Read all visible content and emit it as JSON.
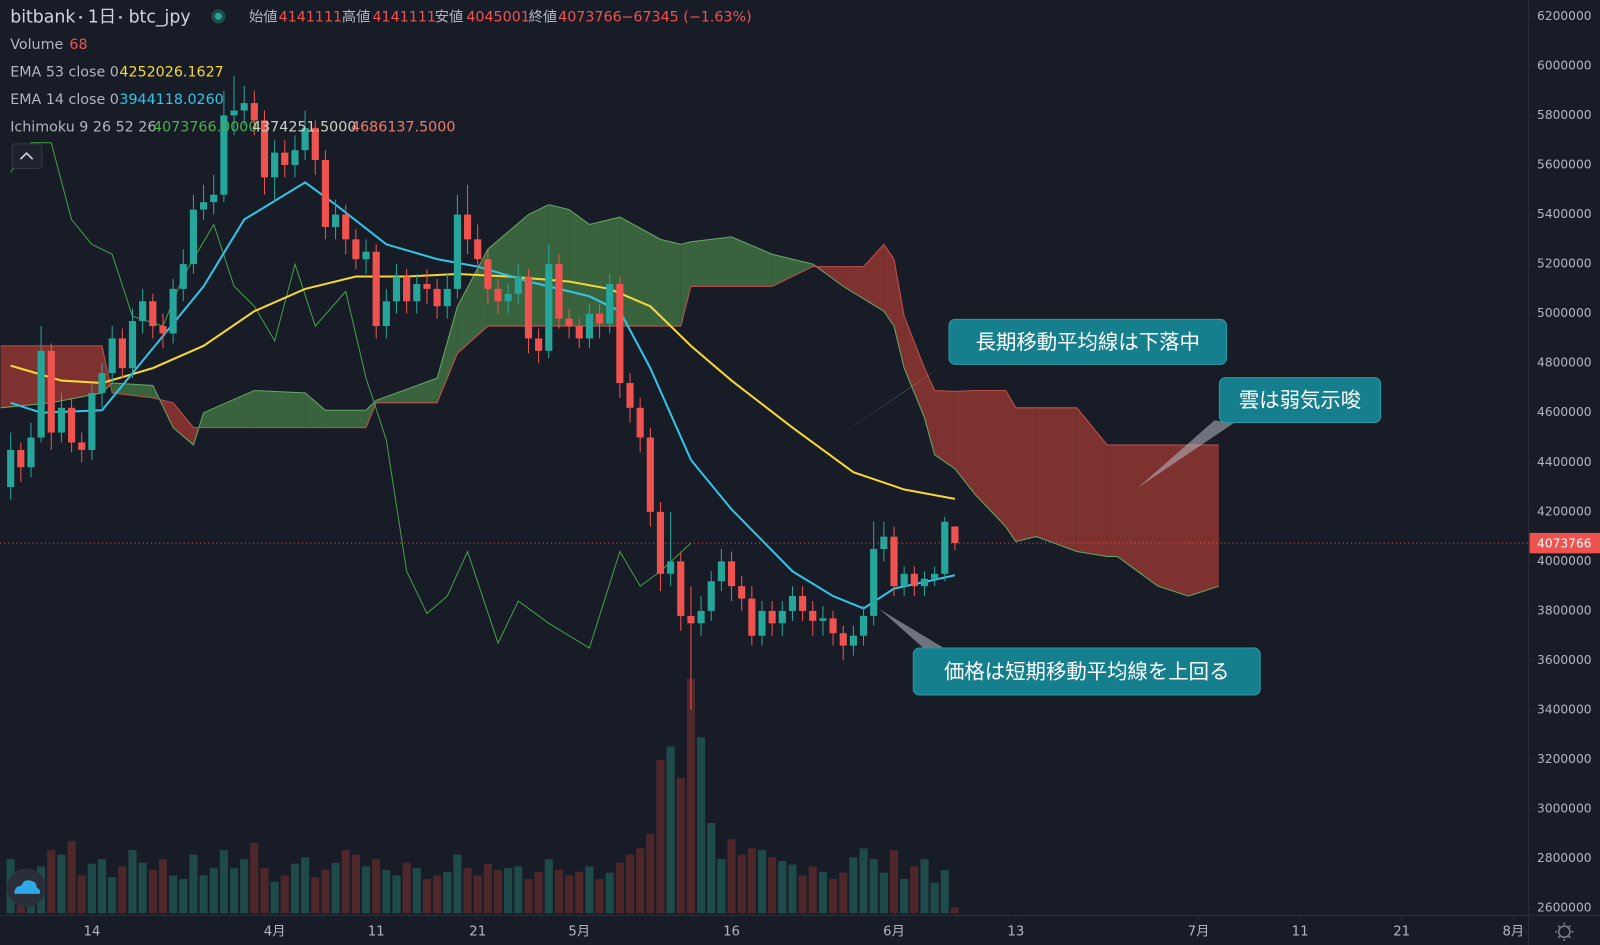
{
  "header": {
    "exchange": "bitbank",
    "interval": "1日",
    "symbol": "btc_jpy",
    "open_label": "始値",
    "high_label": "高値",
    "low_label": "安値",
    "close_label": "終値",
    "change": "−67345 (−1.63%)"
  },
  "chart_data": {
    "type": "candlestick",
    "up_color": "#26a69a",
    "down_color": "#ef5350",
    "x": [
      -8,
      -7,
      -6,
      -5,
      -4,
      -3,
      -2,
      -1,
      0,
      1,
      2,
      3,
      4,
      5,
      6,
      7,
      8,
      9,
      10,
      11,
      12,
      13,
      14,
      15,
      16,
      17,
      18,
      19,
      20,
      21,
      22,
      23,
      24,
      25,
      26,
      27,
      28,
      29,
      30,
      31,
      32,
      33,
      34,
      35,
      36,
      37,
      38,
      39,
      40,
      41,
      42,
      43,
      44,
      45,
      46,
      47,
      48,
      49,
      50,
      51,
      52,
      53,
      54,
      55,
      56,
      57,
      58,
      59,
      60,
      61,
      62,
      63,
      64,
      65,
      66,
      67,
      68,
      69,
      70,
      71,
      72,
      73,
      74,
      75,
      76,
      77,
      78,
      79,
      80,
      81,
      82,
      83,
      84,
      85
    ],
    "open": [
      4300000,
      4450000,
      4380000,
      4500000,
      4850000,
      4520000,
      4620000,
      4480000,
      4450000,
      4680000,
      4760000,
      4900000,
      4780000,
      4970000,
      5050000,
      4950000,
      4920000,
      5100000,
      5200000,
      5420000,
      5450000,
      5480000,
      5800000,
      5820000,
      5850000,
      5780000,
      5550000,
      5650000,
      5600000,
      5660000,
      5750000,
      5620000,
      5350000,
      5400000,
      5300000,
      5220000,
      5250000,
      4950000,
      5050000,
      5150000,
      5050000,
      5120000,
      5100000,
      5030000,
      5100000,
      5400000,
      5300000,
      5220000,
      5100000,
      5050000,
      5080000,
      5150000,
      4900000,
      4850000,
      5200000,
      4980000,
      4950000,
      4900000,
      5000000,
      4960000,
      5120000,
      4720000,
      4620000,
      4500000,
      4200000,
      3950000,
      4000000,
      3780000,
      3750000,
      3800000,
      3920000,
      4000000,
      3900000,
      3850000,
      3700000,
      3800000,
      3750000,
      3800000,
      3860000,
      3800000,
      3760000,
      3770000,
      3710000,
      3660000,
      3700000,
      3780000,
      4050000,
      4100000,
      3900000,
      3950000,
      3900000,
      3930000,
      3950000,
      4141111
    ],
    "high": [
      4520000,
      4480000,
      4560000,
      4950000,
      4880000,
      4680000,
      4660000,
      4520000,
      4720000,
      4800000,
      4950000,
      4940000,
      5020000,
      5100000,
      5080000,
      5000000,
      5140000,
      5260000,
      5480000,
      5520000,
      5560000,
      5900000,
      5960000,
      5920000,
      5900000,
      5820000,
      5700000,
      5700000,
      5720000,
      5820000,
      5780000,
      5660000,
      5460000,
      5440000,
      5340000,
      5300000,
      5280000,
      5100000,
      5200000,
      5180000,
      5160000,
      5180000,
      5140000,
      5160000,
      5480000,
      5520000,
      5360000,
      5260000,
      5140000,
      5120000,
      5200000,
      5180000,
      4940000,
      5280000,
      5240000,
      5020000,
      4980000,
      5040000,
      5040000,
      5160000,
      5150000,
      4760000,
      4660000,
      4540000,
      4240000,
      4200000,
      4040000,
      3900000,
      3860000,
      3960000,
      4050000,
      4040000,
      3940000,
      3900000,
      3840000,
      3840000,
      3840000,
      3900000,
      3900000,
      3840000,
      3820000,
      3800000,
      3740000,
      3740000,
      3820000,
      4160000,
      4160000,
      4140000,
      3980000,
      3980000,
      3960000,
      3980000,
      4180000,
      4141111
    ],
    "low": [
      4250000,
      4320000,
      4340000,
      4480000,
      4450000,
      4480000,
      4440000,
      4400000,
      4410000,
      4620000,
      4720000,
      4740000,
      4740000,
      4920000,
      4900000,
      4860000,
      4880000,
      5050000,
      5160000,
      5380000,
      5400000,
      5450000,
      5720000,
      5760000,
      5720000,
      5480000,
      5450000,
      5550000,
      5550000,
      5620000,
      5560000,
      5300000,
      5300000,
      5240000,
      5180000,
      5160000,
      4900000,
      4900000,
      5000000,
      5000000,
      5000000,
      5040000,
      4980000,
      4980000,
      5060000,
      5240000,
      5160000,
      5040000,
      5000000,
      5000000,
      5040000,
      4840000,
      4800000,
      4820000,
      4940000,
      4900000,
      4860000,
      4860000,
      4900000,
      4920000,
      4660000,
      4560000,
      4440000,
      4140000,
      3880000,
      3900000,
      3720000,
      3400000,
      3700000,
      3760000,
      3880000,
      3840000,
      3800000,
      3660000,
      3660000,
      3700000,
      3700000,
      3760000,
      3760000,
      3700000,
      3700000,
      3660000,
      3600000,
      3620000,
      3660000,
      3740000,
      4000000,
      3860000,
      3860000,
      3860000,
      3860000,
      3900000,
      3920000,
      4045001
    ],
    "close": [
      4450000,
      4380000,
      4500000,
      4850000,
      4520000,
      4620000,
      4480000,
      4450000,
      4680000,
      4760000,
      4900000,
      4780000,
      4970000,
      5050000,
      4950000,
      4920000,
      5100000,
      5200000,
      5420000,
      5450000,
      5480000,
      5800000,
      5820000,
      5850000,
      5780000,
      5550000,
      5650000,
      5600000,
      5660000,
      5750000,
      5620000,
      5350000,
      5400000,
      5300000,
      5220000,
      5250000,
      4950000,
      5050000,
      5150000,
      5050000,
      5120000,
      5100000,
      5030000,
      5100000,
      5400000,
      5300000,
      5220000,
      5100000,
      5050000,
      5080000,
      5150000,
      4900000,
      4850000,
      5200000,
      4980000,
      4950000,
      4900000,
      5000000,
      4960000,
      5120000,
      4720000,
      4620000,
      4500000,
      4200000,
      3950000,
      4000000,
      3780000,
      3750000,
      3800000,
      3920000,
      4000000,
      3900000,
      3850000,
      3700000,
      3800000,
      3750000,
      3800000,
      3860000,
      3800000,
      3760000,
      3770000,
      3710000,
      3660000,
      3700000,
      3780000,
      4050000,
      4100000,
      3900000,
      3950000,
      3900000,
      3930000,
      3950000,
      4160000,
      4073766
    ],
    "volume": {
      "name": "Volume",
      "up_color": "#1f4a4a",
      "down_color": "#4e272b",
      "values": [
        600,
        450,
        380,
        520,
        700,
        650,
        800,
        420,
        550,
        600,
        400,
        520,
        700,
        560,
        480,
        600,
        420,
        380,
        650,
        420,
        500,
        700,
        500,
        600,
        780,
        500,
        350,
        420,
        550,
        620,
        400,
        480,
        560,
        700,
        650,
        520,
        600,
        480,
        420,
        560,
        500,
        380,
        420,
        460,
        650,
        500,
        420,
        550,
        480,
        500,
        520,
        380,
        460,
        600,
        480,
        420,
        460,
        520,
        380,
        450,
        560,
        650,
        720,
        880,
        1700,
        1850,
        1500,
        2600,
        1950,
        1000,
        600,
        820,
        650,
        720,
        700,
        620,
        580,
        540,
        420,
        520,
        460,
        380,
        450,
        620,
        720,
        600,
        450,
        700,
        380,
        520,
        600,
        340,
        480,
        68
      ]
    },
    "lines": [
      {
        "name": "EMA 53 close 0",
        "color": "#f5d73a",
        "x": [
          -8,
          -3,
          1,
          6,
          11,
          16,
          21,
          26,
          31,
          36,
          41,
          47,
          51,
          55,
          59,
          63,
          69,
          75,
          80,
          85
        ],
        "values": [
          4790000,
          4730000,
          4720000,
          4780000,
          4870000,
          5010000,
          5100000,
          5150000,
          5150000,
          5160000,
          5150000,
          5130000,
          5100000,
          5030000,
          4870000,
          4730000,
          4540000,
          4360000,
          4290000,
          4252026.1627
        ],
        "value_label": "4252026.1627"
      },
      {
        "name": "EMA 14 close 0",
        "color": "#33c3e6",
        "x": [
          -8,
          -5,
          1,
          7,
          11,
          15,
          21,
          24,
          29,
          34,
          38,
          43,
          49,
          52,
          55,
          59,
          63,
          69,
          73,
          76,
          79,
          85
        ],
        "values": [
          4640000,
          4600000,
          4610000,
          4910000,
          5110000,
          5380000,
          5530000,
          5440000,
          5280000,
          5220000,
          5190000,
          5130000,
          5070000,
          5010000,
          4780000,
          4410000,
          4210000,
          3960000,
          3860000,
          3810000,
          3890000,
          3944118.026
        ],
        "value_label": "3944118.0260"
      }
    ],
    "ichimoku": {
      "name": "Ichimoku 9 26 52 26",
      "bull_fill": "#3d6b3f",
      "bear_fill": "#8a3531",
      "lagging": {
        "color": "#43a047",
        "x": [
          -8,
          -6,
          -4,
          -2,
          0,
          2,
          4,
          7,
          9,
          12,
          14,
          16,
          18,
          20,
          22,
          25,
          27,
          29,
          31,
          33,
          35,
          37,
          40,
          42,
          45,
          49,
          52,
          54,
          56,
          59
        ],
        "values": [
          5570000,
          5690000,
          5690000,
          5380000,
          5280000,
          5240000,
          4990000,
          4950000,
          5150000,
          5360000,
          5110000,
          5030000,
          4890000,
          5200000,
          4950000,
          5090000,
          4740000,
          4490000,
          3960000,
          3790000,
          3860000,
          4040000,
          3670000,
          3840000,
          3750000,
          3650000,
          4040000,
          3900000,
          3960000,
          4073766
        ],
        "value_label": "4073766.0000"
      },
      "x": [
        -9,
        -4,
        1,
        2,
        6,
        8,
        10,
        11,
        16,
        21,
        23,
        27,
        28,
        34,
        36,
        39,
        43,
        45,
        47,
        49,
        52,
        56,
        58,
        59,
        63,
        67,
        71,
        74,
        76,
        78,
        79,
        80,
        82,
        83,
        85,
        87,
        90,
        91,
        93,
        97,
        100,
        101,
        103,
        105,
        108,
        111
      ],
      "span_a": {
        "color": "#66a866",
        "values": [
          4620000,
          4640000,
          4680000,
          4720000,
          4710000,
          4540000,
          4470000,
          4600000,
          4690000,
          4680000,
          4610000,
          4610000,
          4650000,
          4740000,
          5030000,
          5260000,
          5400000,
          5440000,
          5420000,
          5360000,
          5390000,
          5300000,
          5280000,
          5290000,
          5310000,
          5240000,
          5200000,
          5110000,
          5060000,
          5010000,
          4950000,
          4780000,
          4580000,
          4430000,
          4374251.5,
          4270000,
          4140000,
          4080000,
          4100000,
          4040000,
          4020000,
          4020000,
          3960000,
          3900000,
          3860000,
          3900000
        ],
        "value_label": "4374251.5000"
      },
      "span_b": {
        "color": "#c0504d",
        "values": [
          4870000,
          4870000,
          4870000,
          4680000,
          4660000,
          4640000,
          4540000,
          4540000,
          4540000,
          4540000,
          4540000,
          4540000,
          4640000,
          4640000,
          4840000,
          4950000,
          4950000,
          4950000,
          4950000,
          4950000,
          4950000,
          4950000,
          4950000,
          5110000,
          5110000,
          5110000,
          5190000,
          5190000,
          5190000,
          5280000,
          5220000,
          4990000,
          4780000,
          4690000,
          4686137.5,
          4690000,
          4690000,
          4620000,
          4620000,
          4620000,
          4470000,
          4470000,
          4470000,
          4470000,
          4470000,
          4470000
        ],
        "value_label": "4686137.5000"
      }
    },
    "ylim": [
      2600000,
      6200000
    ],
    "yticks": [
      2600000,
      2800000,
      3000000,
      3200000,
      3400000,
      3600000,
      3800000,
      4000000,
      4200000,
      4400000,
      4600000,
      4800000,
      5000000,
      5200000,
      5400000,
      5600000,
      5800000,
      6000000,
      6200000
    ],
    "xlim": [
      -9.05,
      141.5
    ],
    "xticks": [
      {
        "value": 0,
        "label": "14"
      },
      {
        "value": 18,
        "label": "4月"
      },
      {
        "value": 28,
        "label": "11"
      },
      {
        "value": 38,
        "label": "21"
      },
      {
        "value": 48,
        "label": "5月"
      },
      {
        "value": 63,
        "label": "16"
      },
      {
        "value": 79,
        "label": "6月"
      },
      {
        "value": 91,
        "label": "13"
      },
      {
        "value": 109,
        "label": "7月"
      },
      {
        "value": 119,
        "label": "11"
      },
      {
        "value": 129,
        "label": "21"
      },
      {
        "value": 140,
        "label": "8月"
      }
    ],
    "grid": false,
    "annotations": [
      {
        "text": "長期移動平均線は下落中"
      },
      {
        "text": "雲は弱気示唆"
      },
      {
        "text": "価格は短期移動平均線を上回る"
      }
    ]
  }
}
